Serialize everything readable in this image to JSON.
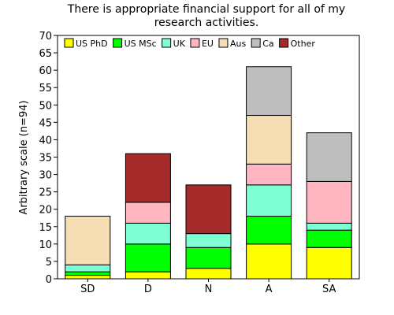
{
  "chart_data": {
    "type": "bar",
    "stacked": true,
    "title_lines": [
      "There is appropriate financial support for all of my",
      "research activities."
    ],
    "xlabel": "",
    "ylabel": "Arbitrary scale (n=94)",
    "ylim": [
      0,
      70
    ],
    "yticks": [
      0,
      5,
      10,
      15,
      20,
      25,
      30,
      35,
      40,
      45,
      50,
      55,
      60,
      65,
      70
    ],
    "grid": false,
    "legend_position": "top",
    "categories": [
      "SD",
      "D",
      "N",
      "A",
      "SA"
    ],
    "series": [
      {
        "name": "US PhD",
        "color": "#ffff00",
        "values": [
          1,
          2,
          3,
          10,
          9
        ]
      },
      {
        "name": "US MSc",
        "color": "#00ff00",
        "values": [
          1,
          8,
          6,
          8,
          5
        ]
      },
      {
        "name": "UK",
        "color": "#7fffd4",
        "values": [
          2,
          6,
          4,
          9,
          2
        ]
      },
      {
        "name": "EU",
        "color": "#ffb6c1",
        "values": [
          0,
          6,
          0,
          6,
          12
        ]
      },
      {
        "name": "Aus",
        "color": "#f5deb3",
        "values": [
          14,
          0,
          0,
          14,
          0
        ]
      },
      {
        "name": "Ca",
        "color": "#bebebe",
        "values": [
          0,
          0,
          0,
          14,
          14
        ]
      },
      {
        "name": "Other",
        "color": "#a52a2a",
        "values": [
          0,
          14,
          14,
          0,
          0
        ]
      }
    ]
  }
}
